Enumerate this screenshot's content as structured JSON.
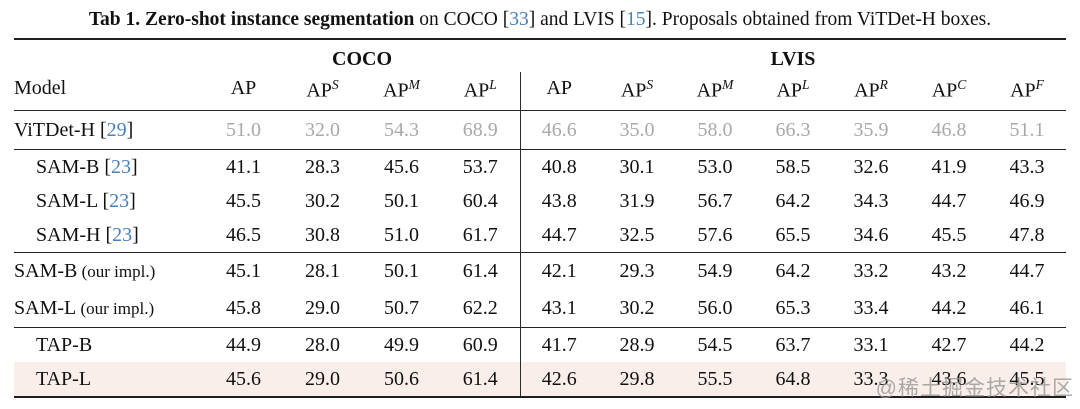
{
  "caption": {
    "bold": "Tab 1. Zero-shot instance segmentation",
    "mid1": " on COCO [",
    "cite1": "33",
    "mid2": "] and LVIS [",
    "cite2": "15",
    "tail": "]. Proposals obtained from ViTDet-H boxes."
  },
  "colors": {
    "citation_blue": "#4a7fbe",
    "muted_gray": "#a9a9a9",
    "highlight_pink": "#faeeea",
    "rule_dark": "#1f1f1f"
  },
  "table": {
    "model_header": "Model",
    "group_headers": [
      {
        "label": "COCO",
        "span": 4
      },
      {
        "label": "LVIS",
        "span": 7
      }
    ],
    "columns": [
      {
        "base": "AP",
        "sup": ""
      },
      {
        "base": "AP",
        "sup": "S"
      },
      {
        "base": "AP",
        "sup": "M"
      },
      {
        "base": "AP",
        "sup": "L"
      },
      {
        "base": "AP",
        "sup": ""
      },
      {
        "base": "AP",
        "sup": "S"
      },
      {
        "base": "AP",
        "sup": "M"
      },
      {
        "base": "AP",
        "sup": "L"
      },
      {
        "base": "AP",
        "sup": "R"
      },
      {
        "base": "AP",
        "sup": "C"
      },
      {
        "base": "AP",
        "sup": "F"
      }
    ],
    "rows": [
      {
        "model": "ViTDet-H",
        "cite": "29",
        "suffix": "",
        "muted": true,
        "highlight": false,
        "rule_after": true,
        "style": "vitdet",
        "values": [
          "51.0",
          "32.0",
          "54.3",
          "68.9",
          "46.6",
          "35.0",
          "58.0",
          "66.3",
          "35.9",
          "46.8",
          "51.1"
        ]
      },
      {
        "model": "SAM-B",
        "cite": "23",
        "suffix": "",
        "muted": false,
        "highlight": false,
        "rule_after": false,
        "style": "",
        "values": [
          "41.1",
          "28.3",
          "45.6",
          "53.7",
          "40.8",
          "30.1",
          "53.0",
          "58.5",
          "32.6",
          "41.9",
          "43.3"
        ]
      },
      {
        "model": "SAM-L",
        "cite": "23",
        "suffix": "",
        "muted": false,
        "highlight": false,
        "rule_after": false,
        "style": "",
        "values": [
          "45.5",
          "30.2",
          "50.1",
          "60.4",
          "43.8",
          "31.9",
          "56.7",
          "64.2",
          "34.3",
          "44.7",
          "46.9"
        ]
      },
      {
        "model": "SAM-H",
        "cite": "23",
        "suffix": "",
        "muted": false,
        "highlight": false,
        "rule_after": true,
        "style": "",
        "values": [
          "46.5",
          "30.8",
          "51.0",
          "61.7",
          "44.7",
          "32.5",
          "57.6",
          "65.5",
          "34.6",
          "45.5",
          "47.8"
        ]
      },
      {
        "model": "SAM-B",
        "cite": "",
        "suffix": "(our impl.)",
        "muted": false,
        "highlight": false,
        "rule_after": false,
        "style": "impl",
        "values": [
          "45.1",
          "28.1",
          "50.1",
          "61.4",
          "42.1",
          "29.3",
          "54.9",
          "64.2",
          "33.2",
          "43.2",
          "44.7"
        ]
      },
      {
        "model": "SAM-L",
        "cite": "",
        "suffix": "(our impl.)",
        "muted": false,
        "highlight": false,
        "rule_after": true,
        "style": "impl",
        "values": [
          "45.8",
          "29.0",
          "50.7",
          "62.2",
          "43.1",
          "30.2",
          "56.0",
          "65.3",
          "33.4",
          "44.2",
          "46.1"
        ]
      },
      {
        "model": "TAP-B",
        "cite": "",
        "suffix": "",
        "muted": false,
        "highlight": false,
        "rule_after": false,
        "style": "",
        "values": [
          "44.9",
          "28.0",
          "49.9",
          "60.9",
          "41.7",
          "28.9",
          "54.5",
          "63.7",
          "33.1",
          "42.7",
          "44.2"
        ]
      },
      {
        "model": "TAP-L",
        "cite": "",
        "suffix": "",
        "muted": false,
        "highlight": true,
        "rule_after": false,
        "style": "",
        "values": [
          "45.6",
          "29.0",
          "50.6",
          "61.4",
          "42.6",
          "29.8",
          "55.5",
          "64.8",
          "33.3",
          "43.6",
          "45.5"
        ]
      }
    ]
  },
  "watermark": {
    "text": "@稀土掘金技术社区"
  }
}
